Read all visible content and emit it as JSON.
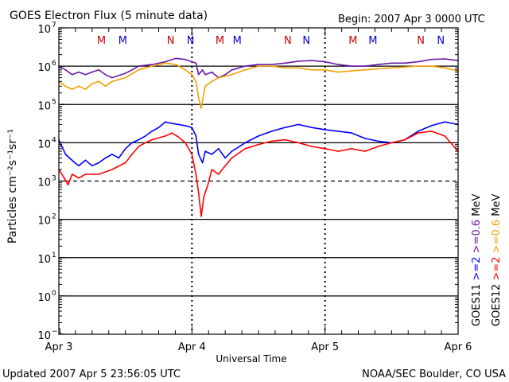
{
  "header": {
    "title": "GOES Electron Flux (5 minute data)",
    "begin": "Begin: 2007 Apr 3 0000 UTC"
  },
  "footer": {
    "updated": "Updated 2007 Apr  5 23:56:05 UTC",
    "credit": "NOAA/SEC Boulder, CO USA"
  },
  "axis_titles": {
    "x": "Universal Time",
    "y": "Particles cm⁻²s⁻¹sr⁻¹"
  },
  "side_legend": {
    "col1": [
      {
        "text": "GOES11",
        "color": "#000000"
      },
      {
        "text": ">=2",
        "color": "#0000ff"
      },
      {
        "text": ">=0.6",
        "color": "#6a1aa8"
      },
      {
        "text": "MeV",
        "color": "#000000"
      }
    ],
    "col2": [
      {
        "text": "GOES12",
        "color": "#000000"
      },
      {
        "text": ">=2",
        "color": "#ff0000"
      },
      {
        "text": ">=0.6",
        "color": "#f0a000"
      },
      {
        "text": "MeV",
        "color": "#000000"
      }
    ]
  },
  "markers": [
    {
      "t": 0.32,
      "text": "M",
      "color": "#cc0000"
    },
    {
      "t": 0.48,
      "text": "M",
      "color": "#0000cc"
    },
    {
      "t": 0.84,
      "text": "N",
      "color": "#cc0000"
    },
    {
      "t": 0.99,
      "text": "N",
      "color": "#0000cc"
    },
    {
      "t": 1.21,
      "text": "M",
      "color": "#cc0000"
    },
    {
      "t": 1.34,
      "text": "M",
      "color": "#0000cc"
    },
    {
      "t": 1.72,
      "text": "N",
      "color": "#cc0000"
    },
    {
      "t": 1.86,
      "text": "N",
      "color": "#0000cc"
    },
    {
      "t": 2.21,
      "text": "M",
      "color": "#cc0000"
    },
    {
      "t": 2.36,
      "text": "M",
      "color": "#0000cc"
    },
    {
      "t": 2.72,
      "text": "N",
      "color": "#cc0000"
    },
    {
      "t": 2.87,
      "text": "N",
      "color": "#0000cc"
    }
  ],
  "chart_data": {
    "type": "line",
    "y_scale": "log",
    "ylim_exp": [
      -1,
      7
    ],
    "y_ticks": [
      {
        "exp": 7,
        "label": "10",
        "sup": "7"
      },
      {
        "exp": 6,
        "label": "10",
        "sup": "6"
      },
      {
        "exp": 5,
        "label": "10",
        "sup": "5"
      },
      {
        "exp": 4,
        "label": "10",
        "sup": "4"
      },
      {
        "exp": 3,
        "label": "10",
        "sup": "3"
      },
      {
        "exp": 2,
        "label": "10",
        "sup": "2"
      },
      {
        "exp": 1,
        "label": "10",
        "sup": "1"
      },
      {
        "exp": 0,
        "label": "10",
        "sup": "0"
      },
      {
        "exp": -1,
        "label": "10",
        "sup": "−1"
      }
    ],
    "solid_lines_exp": [
      6,
      5,
      4,
      2,
      1,
      0
    ],
    "dashed_lines_exp": [
      3
    ],
    "x_range_days": [
      0,
      3
    ],
    "x_ticks": [
      {
        "day": 0,
        "label": "Apr 3"
      },
      {
        "day": 1,
        "label": "Apr 4"
      },
      {
        "day": 2,
        "label": "Apr 5"
      },
      {
        "day": 3,
        "label": "Apr 6"
      }
    ],
    "series": [
      {
        "name": "GOES11 >=0.6 MeV",
        "color": "#6a1aa8",
        "points": [
          [
            0.0,
            1000000.0
          ],
          [
            0.05,
            800000.0
          ],
          [
            0.1,
            600000.0
          ],
          [
            0.15,
            700000.0
          ],
          [
            0.2,
            600000.0
          ],
          [
            0.25,
            700000.0
          ],
          [
            0.3,
            800000.0
          ],
          [
            0.35,
            600000.0
          ],
          [
            0.4,
            500000.0
          ],
          [
            0.5,
            650000.0
          ],
          [
            0.55,
            800000.0
          ],
          [
            0.6,
            1000000.0
          ],
          [
            0.7,
            1100000.0
          ],
          [
            0.8,
            1300000.0
          ],
          [
            0.88,
            1600000.0
          ],
          [
            0.95,
            1500000.0
          ],
          [
            1.0,
            1300000.0
          ],
          [
            1.03,
            1200000.0
          ],
          [
            1.05,
            600000.0
          ],
          [
            1.08,
            800000.0
          ],
          [
            1.1,
            600000.0
          ],
          [
            1.15,
            700000.0
          ],
          [
            1.2,
            500000.0
          ],
          [
            1.25,
            600000.0
          ],
          [
            1.3,
            800000.0
          ],
          [
            1.4,
            1000000.0
          ],
          [
            1.5,
            1100000.0
          ],
          [
            1.6,
            1100000.0
          ],
          [
            1.7,
            1200000.0
          ],
          [
            1.8,
            1350000.0
          ],
          [
            1.9,
            1400000.0
          ],
          [
            2.0,
            1300000.0
          ],
          [
            2.1,
            1100000.0
          ],
          [
            2.2,
            1000000.0
          ],
          [
            2.3,
            1000000.0
          ],
          [
            2.4,
            1100000.0
          ],
          [
            2.5,
            1200000.0
          ],
          [
            2.6,
            1200000.0
          ],
          [
            2.7,
            1300000.0
          ],
          [
            2.8,
            1500000.0
          ],
          [
            2.9,
            1550000.0
          ],
          [
            3.0,
            1400000.0
          ]
        ]
      },
      {
        "name": "GOES12 >=0.6 MeV",
        "color": "#f0a000",
        "points": [
          [
            0.0,
            400000.0
          ],
          [
            0.05,
            300000.0
          ],
          [
            0.1,
            250000.0
          ],
          [
            0.15,
            300000.0
          ],
          [
            0.2,
            250000.0
          ],
          [
            0.25,
            350000.0
          ],
          [
            0.3,
            400000.0
          ],
          [
            0.35,
            300000.0
          ],
          [
            0.4,
            400000.0
          ],
          [
            0.5,
            500000.0
          ],
          [
            0.6,
            800000.0
          ],
          [
            0.7,
            1000000.0
          ],
          [
            0.8,
            1200000.0
          ],
          [
            0.88,
            1100000.0
          ],
          [
            0.95,
            800000.0
          ],
          [
            1.0,
            600000.0
          ],
          [
            1.03,
            400000.0
          ],
          [
            1.05,
            150000.0
          ],
          [
            1.07,
            80000.0
          ],
          [
            1.1,
            300000.0
          ],
          [
            1.15,
            400000.0
          ],
          [
            1.2,
            500000.0
          ],
          [
            1.3,
            600000.0
          ],
          [
            1.4,
            800000.0
          ],
          [
            1.5,
            1000000.0
          ],
          [
            1.6,
            1000000.0
          ],
          [
            1.7,
            900000.0
          ],
          [
            1.8,
            900000.0
          ],
          [
            1.9,
            800000.0
          ],
          [
            2.0,
            800000.0
          ],
          [
            2.1,
            700000.0
          ],
          [
            2.2,
            750000.0
          ],
          [
            2.3,
            800000.0
          ],
          [
            2.4,
            850000.0
          ],
          [
            2.5,
            900000.0
          ],
          [
            2.6,
            950000.0
          ],
          [
            2.7,
            1000000.0
          ],
          [
            2.8,
            1000000.0
          ],
          [
            2.9,
            900000.0
          ],
          [
            3.0,
            750000.0
          ]
        ]
      },
      {
        "name": "GOES11 >=2 MeV",
        "color": "#0000ff",
        "points": [
          [
            0.0,
            12000.0
          ],
          [
            0.05,
            5000.0
          ],
          [
            0.08,
            4000.0
          ],
          [
            0.12,
            3000.0
          ],
          [
            0.15,
            2500.0
          ],
          [
            0.2,
            3500.0
          ],
          [
            0.25,
            2500.0
          ],
          [
            0.3,
            3000.0
          ],
          [
            0.35,
            4000.0
          ],
          [
            0.4,
            5000.0
          ],
          [
            0.45,
            4000.0
          ],
          [
            0.5,
            7000.0
          ],
          [
            0.55,
            10000.0
          ],
          [
            0.6,
            12000.0
          ],
          [
            0.65,
            15000.0
          ],
          [
            0.7,
            20000.0
          ],
          [
            0.75,
            25000.0
          ],
          [
            0.8,
            35000.0
          ],
          [
            0.85,
            32000.0
          ],
          [
            0.9,
            30000.0
          ],
          [
            0.95,
            28000.0
          ],
          [
            1.0,
            25000.0
          ],
          [
            1.03,
            15000.0
          ],
          [
            1.05,
            5000.0
          ],
          [
            1.08,
            3000.0
          ],
          [
            1.1,
            6000.0
          ],
          [
            1.15,
            5000.0
          ],
          [
            1.2,
            7000.0
          ],
          [
            1.25,
            4000.0
          ],
          [
            1.3,
            6000.0
          ],
          [
            1.4,
            10000.0
          ],
          [
            1.5,
            15000.0
          ],
          [
            1.6,
            20000.0
          ],
          [
            1.7,
            25000.0
          ],
          [
            1.8,
            30000.0
          ],
          [
            1.9,
            25000.0
          ],
          [
            2.0,
            22000.0
          ],
          [
            2.1,
            20000.0
          ],
          [
            2.2,
            18000.0
          ],
          [
            2.3,
            13000.0
          ],
          [
            2.4,
            11000.0
          ],
          [
            2.5,
            10000.0
          ],
          [
            2.6,
            12000.0
          ],
          [
            2.7,
            20000.0
          ],
          [
            2.8,
            28000.0
          ],
          [
            2.9,
            35000.0
          ],
          [
            3.0,
            30000.0
          ]
        ]
      },
      {
        "name": "GOES12 >=2 MeV",
        "color": "#ff0000",
        "points": [
          [
            0.0,
            2000.0
          ],
          [
            0.04,
            1200.0
          ],
          [
            0.07,
            800.0
          ],
          [
            0.1,
            1500.0
          ],
          [
            0.15,
            1200.0
          ],
          [
            0.2,
            1500.0
          ],
          [
            0.3,
            1500.0
          ],
          [
            0.4,
            2000.0
          ],
          [
            0.5,
            3000.0
          ],
          [
            0.55,
            5000.0
          ],
          [
            0.6,
            8000.0
          ],
          [
            0.65,
            10000.0
          ],
          [
            0.7,
            12000.0
          ],
          [
            0.8,
            15000.0
          ],
          [
            0.85,
            18000.0
          ],
          [
            0.9,
            14000.0
          ],
          [
            0.95,
            10000.0
          ],
          [
            1.0,
            5000.0
          ],
          [
            1.03,
            1500.0
          ],
          [
            1.05,
            500.0
          ],
          [
            1.07,
            120.0
          ],
          [
            1.09,
            400.0
          ],
          [
            1.12,
            800.0
          ],
          [
            1.15,
            2000.0
          ],
          [
            1.2,
            1500.0
          ],
          [
            1.25,
            2500.0
          ],
          [
            1.3,
            4000.0
          ],
          [
            1.4,
            7000.0
          ],
          [
            1.5,
            9000.0
          ],
          [
            1.6,
            11000.0
          ],
          [
            1.7,
            12000.0
          ],
          [
            1.8,
            10000.0
          ],
          [
            1.9,
            8000.0
          ],
          [
            2.0,
            7000.0
          ],
          [
            2.1,
            6000.0
          ],
          [
            2.2,
            7000.0
          ],
          [
            2.3,
            6000.0
          ],
          [
            2.4,
            8000.0
          ],
          [
            2.5,
            10000.0
          ],
          [
            2.6,
            12000.0
          ],
          [
            2.7,
            18000.0
          ],
          [
            2.8,
            20000.0
          ],
          [
            2.9,
            15000.0
          ],
          [
            3.0,
            6000.0
          ]
        ]
      }
    ]
  }
}
